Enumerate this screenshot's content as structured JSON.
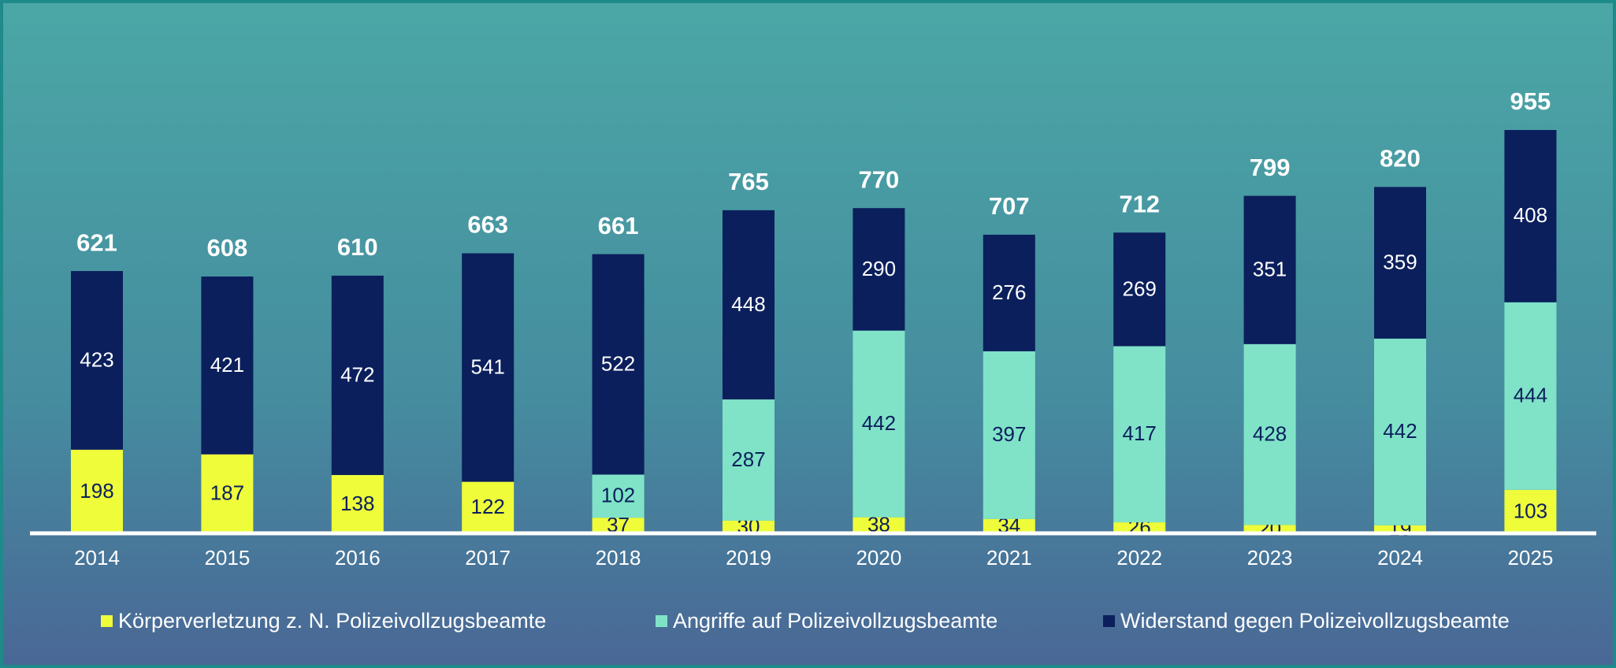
{
  "chart_data": {
    "type": "stacked-bar",
    "categories": [
      "2014",
      "2015",
      "2016",
      "2017",
      "2018",
      "2019",
      "2020",
      "2021",
      "2022",
      "2023",
      "2024",
      "2025"
    ],
    "series": [
      {
        "name": "Körperverletzung z. N. Polizeivollzugsbeamte",
        "color": "#eefc3a",
        "label_color": "#0b1f5c",
        "values": [
          198,
          187,
          138,
          122,
          37,
          30,
          38,
          34,
          26,
          20,
          19,
          103
        ]
      },
      {
        "name": "Angriffe auf Polizeivollzugsbeamte",
        "color": "#80e3c8",
        "label_color": "#0b1f5c",
        "values": [
          null,
          null,
          null,
          null,
          102,
          287,
          442,
          397,
          417,
          428,
          442,
          444
        ]
      },
      {
        "name": "Widerstand gegen Polizeivollzugsbeamte",
        "color": "#0b1f5c",
        "label_color": "#ffffff",
        "values": [
          423,
          421,
          472,
          541,
          522,
          448,
          290,
          276,
          269,
          351,
          359,
          408
        ]
      }
    ],
    "totals": [
      621,
      608,
      610,
      663,
      661,
      765,
      770,
      707,
      712,
      799,
      820,
      955
    ]
  }
}
